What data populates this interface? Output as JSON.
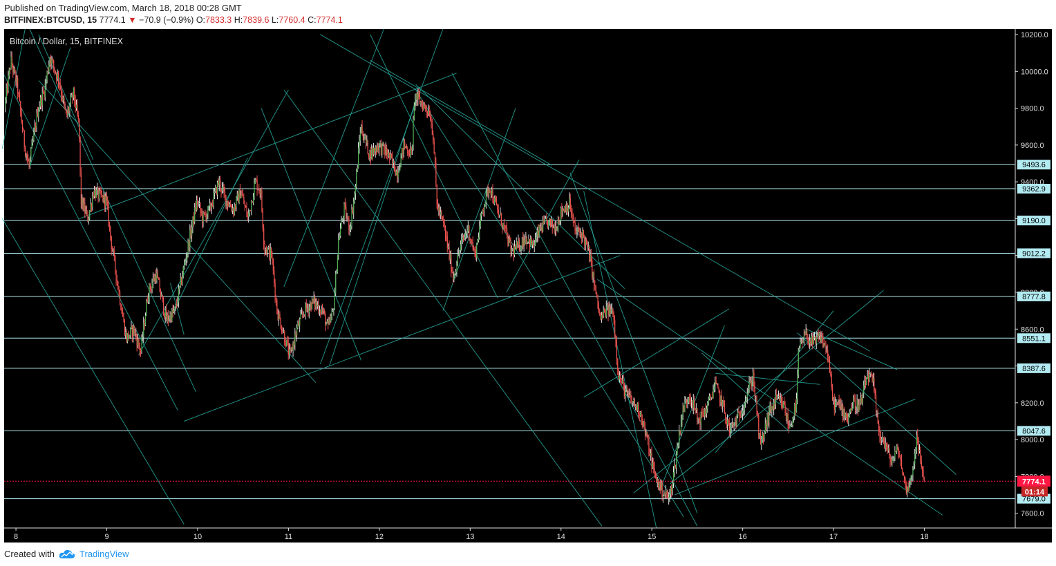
{
  "header": {
    "published": "Published on TradingView.com, March 18, 2018 00:28 GMT",
    "symbol": "BITFINEX:BTCUSD, 15",
    "last": "7774.1",
    "change_arrow": "▼",
    "change": "−70.9 (−0.9%)",
    "o_label": "O:",
    "o_val": "7833.3",
    "h_label": "H:",
    "h_val": "7839.6",
    "l_label": "L:",
    "l_val": "7760.4",
    "c_label": "C:",
    "c_val": "7774.1"
  },
  "footer": {
    "created_with": "Created with",
    "brand": "TradingView",
    "brand_icon": "tradingview-cloud-icon"
  },
  "colors": {
    "background": "#000000",
    "up": "#4caf50",
    "down": "#ef5350",
    "wick_up": "#e0e0e0",
    "trendline": "#26a69a",
    "hline": "#b2ebf2",
    "last_price": "#ff1744"
  },
  "chart_data": {
    "type": "candlestick",
    "title": "Bitcoin / Dollar, 15, BITFINEX",
    "timeframe": "15",
    "x_axis_ticks": [
      "8",
      "9",
      "10",
      "11",
      "12",
      "13",
      "14",
      "15",
      "16",
      "17",
      "18"
    ],
    "y_axis_ticks": [
      "7600.0",
      "7800.0",
      "8000.0",
      "8200.0",
      "8400.0",
      "8600.0",
      "8800.0",
      "9000.0",
      "9200.0",
      "9400.0",
      "9600.0",
      "9800.0",
      "10000.0",
      "10200.0"
    ],
    "ylim": [
      7520,
      10230
    ],
    "xlim": [
      7.87,
      19.0
    ],
    "y_ticks": [
      7600,
      7800,
      8000,
      8200,
      8400,
      8600,
      8800,
      9000,
      9200,
      9400,
      9600,
      9800,
      10000,
      10200
    ],
    "x_ticks": [
      8,
      9,
      10,
      11,
      12,
      13,
      14,
      15,
      16,
      17,
      18
    ],
    "grid": false,
    "last_price": 7774.1,
    "timer": "01:14",
    "horizontal_levels": [
      9493.6,
      9362.9,
      9190.0,
      9012.2,
      8777.8,
      8551.1,
      8387.6,
      8047.6,
      7679.0
    ],
    "horizontal_level_labels": [
      "9493.6",
      "9362.9",
      "9190.0",
      "9012.2",
      "8777.8",
      "8551.1",
      "8387.6",
      "8047.6",
      "7679.0"
    ],
    "price_path": [
      [
        7.88,
        9800
      ],
      [
        7.95,
        10060
      ],
      [
        8.02,
        9920
      ],
      [
        8.1,
        9600
      ],
      [
        8.15,
        9480
      ],
      [
        8.25,
        9800
      ],
      [
        8.32,
        9900
      ],
      [
        8.38,
        10080
      ],
      [
        8.48,
        9950
      ],
      [
        8.56,
        9750
      ],
      [
        8.64,
        9880
      ],
      [
        8.7,
        9700
      ],
      [
        8.72,
        9300
      ],
      [
        8.8,
        9200
      ],
      [
        8.86,
        9350
      ],
      [
        8.93,
        9320
      ],
      [
        9.0,
        9300
      ],
      [
        9.06,
        9050
      ],
      [
        9.14,
        8800
      ],
      [
        9.22,
        8550
      ],
      [
        9.3,
        8600
      ],
      [
        9.38,
        8480
      ],
      [
        9.46,
        8800
      ],
      [
        9.55,
        8900
      ],
      [
        9.66,
        8650
      ],
      [
        9.76,
        8700
      ],
      [
        9.84,
        8900
      ],
      [
        9.92,
        9100
      ],
      [
        10.0,
        9300
      ],
      [
        10.06,
        9200
      ],
      [
        10.14,
        9250
      ],
      [
        10.24,
        9400
      ],
      [
        10.32,
        9300
      ],
      [
        10.4,
        9250
      ],
      [
        10.48,
        9350
      ],
      [
        10.56,
        9200
      ],
      [
        10.64,
        9400
      ],
      [
        10.7,
        9350
      ],
      [
        10.74,
        9050
      ],
      [
        10.82,
        9000
      ],
      [
        10.88,
        8700
      ],
      [
        10.94,
        8600
      ],
      [
        11.02,
        8450
      ],
      [
        11.1,
        8600
      ],
      [
        11.18,
        8700
      ],
      [
        11.28,
        8750
      ],
      [
        11.38,
        8700
      ],
      [
        11.44,
        8600
      ],
      [
        11.5,
        8700
      ],
      [
        11.56,
        9100
      ],
      [
        11.62,
        9250
      ],
      [
        11.68,
        9150
      ],
      [
        11.74,
        9350
      ],
      [
        11.8,
        9700
      ],
      [
        11.9,
        9550
      ],
      [
        12.0,
        9600
      ],
      [
        12.1,
        9550
      ],
      [
        12.2,
        9450
      ],
      [
        12.28,
        9600
      ],
      [
        12.36,
        9550
      ],
      [
        12.4,
        9870
      ],
      [
        12.48,
        9820
      ],
      [
        12.56,
        9780
      ],
      [
        12.6,
        9650
      ],
      [
        12.64,
        9280
      ],
      [
        12.72,
        9150
      ],
      [
        12.82,
        8880
      ],
      [
        12.9,
        9050
      ],
      [
        12.98,
        9150
      ],
      [
        13.06,
        9000
      ],
      [
        13.14,
        9250
      ],
      [
        13.22,
        9380
      ],
      [
        13.3,
        9250
      ],
      [
        13.38,
        9150
      ],
      [
        13.46,
        9020
      ],
      [
        13.54,
        9050
      ],
      [
        13.62,
        9100
      ],
      [
        13.7,
        9050
      ],
      [
        13.78,
        9150
      ],
      [
        13.86,
        9180
      ],
      [
        13.94,
        9150
      ],
      [
        14.02,
        9250
      ],
      [
        14.1,
        9280
      ],
      [
        14.16,
        9130
      ],
      [
        14.24,
        9120
      ],
      [
        14.32,
        9000
      ],
      [
        14.38,
        8820
      ],
      [
        14.44,
        8650
      ],
      [
        14.5,
        8700
      ],
      [
        14.58,
        8700
      ],
      [
        14.64,
        8350
      ],
      [
        14.72,
        8250
      ],
      [
        14.8,
        8200
      ],
      [
        14.88,
        8150
      ],
      [
        14.96,
        7980
      ],
      [
        15.04,
        7800
      ],
      [
        15.12,
        7720
      ],
      [
        15.2,
        7680
      ],
      [
        15.26,
        7860
      ],
      [
        15.34,
        8150
      ],
      [
        15.42,
        8250
      ],
      [
        15.52,
        8100
      ],
      [
        15.62,
        8180
      ],
      [
        15.7,
        8300
      ],
      [
        15.78,
        8200
      ],
      [
        15.86,
        8050
      ],
      [
        15.96,
        8120
      ],
      [
        16.04,
        8230
      ],
      [
        16.12,
        8350
      ],
      [
        16.2,
        7960
      ],
      [
        16.3,
        8150
      ],
      [
        16.38,
        8220
      ],
      [
        16.46,
        8180
      ],
      [
        16.52,
        8060
      ],
      [
        16.6,
        8200
      ],
      [
        16.62,
        8480
      ],
      [
        16.7,
        8570
      ],
      [
        16.78,
        8520
      ],
      [
        16.86,
        8560
      ],
      [
        16.94,
        8480
      ],
      [
        17.0,
        8200
      ],
      [
        17.08,
        8180
      ],
      [
        17.16,
        8120
      ],
      [
        17.22,
        8200
      ],
      [
        17.3,
        8180
      ],
      [
        17.38,
        8350
      ],
      [
        17.44,
        8310
      ],
      [
        17.5,
        8050
      ],
      [
        17.56,
        7990
      ],
      [
        17.64,
        7880
      ],
      [
        17.72,
        7950
      ],
      [
        17.8,
        7730
      ],
      [
        17.86,
        7780
      ],
      [
        17.92,
        8000
      ],
      [
        17.98,
        7850
      ],
      [
        18.0,
        7774
      ]
    ]
  }
}
